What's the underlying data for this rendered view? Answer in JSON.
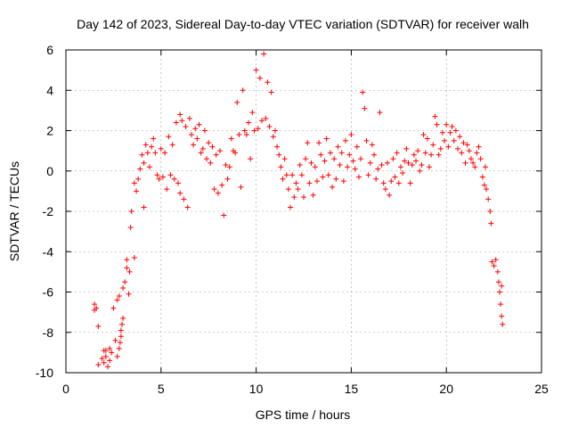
{
  "chart_data": {
    "type": "scatter",
    "title": "Day 142 of 2023, Sidereal Day-to-day VTEC variation (SDTVAR) for receiver walh",
    "xlabel": "GPS time / hours",
    "ylabel": "SDTVAR / TECUs",
    "xlim": [
      0,
      25
    ],
    "ylim": [
      -10,
      6
    ],
    "xticks": [
      0,
      5,
      10,
      15,
      20,
      25
    ],
    "yticks": [
      -10,
      -8,
      -6,
      -4,
      -2,
      0,
      2,
      4,
      6
    ],
    "xtick_labels": [
      "0",
      "5",
      "10",
      "15",
      "20",
      "25"
    ],
    "ytick_labels": [
      "-10",
      "-8",
      "-6",
      "-4",
      "-2",
      "0",
      "2",
      "4",
      "6"
    ],
    "grid": true,
    "marker": "+",
    "series": [
      {
        "name": "SDTVAR",
        "color": "#ff0000",
        "points": [
          [
            1.5,
            -6.6
          ],
          [
            1.5,
            -6.9
          ],
          [
            1.6,
            -6.8
          ],
          [
            1.7,
            -7.7
          ],
          [
            1.7,
            -9.6
          ],
          [
            1.9,
            -9.3
          ],
          [
            2.0,
            -8.9
          ],
          [
            2.0,
            -9.5
          ],
          [
            2.1,
            -8.9
          ],
          [
            2.1,
            -9.2
          ],
          [
            2.2,
            -9.7
          ],
          [
            2.3,
            -9.4
          ],
          [
            2.3,
            -8.8
          ],
          [
            2.4,
            -9.0
          ],
          [
            2.5,
            -6.8
          ],
          [
            2.6,
            -8.4
          ],
          [
            2.7,
            -9.2
          ],
          [
            2.7,
            -6.4
          ],
          [
            2.8,
            -8.8
          ],
          [
            2.8,
            -6.2
          ],
          [
            2.85,
            -8.5
          ],
          [
            2.9,
            -8.2
          ],
          [
            2.9,
            -7.9
          ],
          [
            2.95,
            -7.6
          ],
          [
            3.0,
            -7.3
          ],
          [
            3.0,
            -5.8
          ],
          [
            3.1,
            -5.5
          ],
          [
            3.2,
            -4.8
          ],
          [
            3.2,
            -4.4
          ],
          [
            3.3,
            -6.1
          ],
          [
            3.35,
            -5.0
          ],
          [
            3.4,
            -2.8
          ],
          [
            3.45,
            -2.0
          ],
          [
            3.6,
            -4.3
          ],
          [
            3.6,
            -0.6
          ],
          [
            3.7,
            -1.0
          ],
          [
            3.8,
            -0.4
          ],
          [
            3.9,
            0.1
          ],
          [
            4.0,
            0.8
          ],
          [
            4.1,
            -1.8
          ],
          [
            4.1,
            0.4
          ],
          [
            4.2,
            1.3
          ],
          [
            4.3,
            0.9
          ],
          [
            4.4,
            0.2
          ],
          [
            4.5,
            1.2
          ],
          [
            4.6,
            1.6
          ],
          [
            4.7,
            0.9
          ],
          [
            4.8,
            -0.2
          ],
          [
            4.9,
            -0.4
          ],
          [
            5.0,
            1.1
          ],
          [
            5.1,
            -0.3
          ],
          [
            5.2,
            0.9
          ],
          [
            5.3,
            -0.9
          ],
          [
            5.4,
            1.7
          ],
          [
            5.5,
            -0.2
          ],
          [
            5.6,
            1.3
          ],
          [
            5.7,
            -0.4
          ],
          [
            5.8,
            2.4
          ],
          [
            5.9,
            -0.6
          ],
          [
            6.0,
            2.8
          ],
          [
            6.0,
            -1.1
          ],
          [
            6.1,
            2.5
          ],
          [
            6.2,
            -1.4
          ],
          [
            6.3,
            2.2
          ],
          [
            6.4,
            -1.8
          ],
          [
            6.5,
            2.6
          ],
          [
            6.6,
            1.8
          ],
          [
            6.7,
            1.3
          ],
          [
            6.8,
            2.1
          ],
          [
            6.9,
            1.6
          ],
          [
            7.0,
            2.3
          ],
          [
            7.1,
            0.9
          ],
          [
            7.2,
            1.1
          ],
          [
            7.3,
            2.0
          ],
          [
            7.4,
            0.6
          ],
          [
            7.5,
            1.4
          ],
          [
            7.6,
            0.4
          ],
          [
            7.7,
            1.2
          ],
          [
            7.8,
            -0.9
          ],
          [
            7.9,
            0.8
          ],
          [
            8.0,
            -1.1
          ],
          [
            8.1,
            1.0
          ],
          [
            8.2,
            -0.7
          ],
          [
            8.3,
            -2.2
          ],
          [
            8.4,
            0.3
          ],
          [
            8.5,
            -0.4
          ],
          [
            8.6,
            0.2
          ],
          [
            8.7,
            1.6
          ],
          [
            8.8,
            1.0
          ],
          [
            8.9,
            0.9
          ],
          [
            9.0,
            3.4
          ],
          [
            9.1,
            1.8
          ],
          [
            9.2,
            -0.8
          ],
          [
            9.3,
            4.0
          ],
          [
            9.4,
            2.0
          ],
          [
            9.5,
            1.8
          ],
          [
            9.6,
            2.4
          ],
          [
            9.7,
            0.6
          ],
          [
            9.8,
            2.9
          ],
          [
            9.9,
            2.0
          ],
          [
            10.0,
            5.0
          ],
          [
            10.1,
            2.1
          ],
          [
            10.2,
            4.6
          ],
          [
            10.3,
            2.5
          ],
          [
            10.4,
            5.8
          ],
          [
            10.5,
            2.6
          ],
          [
            10.6,
            4.4
          ],
          [
            10.7,
            2.2
          ],
          [
            10.8,
            3.9
          ],
          [
            10.9,
            1.7
          ],
          [
            11.0,
            2.0
          ],
          [
            11.1,
            1.2
          ],
          [
            11.2,
            0.8
          ],
          [
            11.3,
            0.2
          ],
          [
            11.4,
            -0.4
          ],
          [
            11.5,
            0.6
          ],
          [
            11.6,
            -0.2
          ],
          [
            11.7,
            -0.9
          ],
          [
            11.8,
            -1.8
          ],
          [
            11.9,
            -0.2
          ],
          [
            12.0,
            -1.3
          ],
          [
            12.1,
            -0.6
          ],
          [
            12.2,
            -0.9
          ],
          [
            12.3,
            0.3
          ],
          [
            12.4,
            -0.2
          ],
          [
            12.5,
            -1.3
          ],
          [
            12.6,
            0.6
          ],
          [
            12.7,
            1.4
          ],
          [
            12.8,
            -0.6
          ],
          [
            12.9,
            0.4
          ],
          [
            13.0,
            -1.2
          ],
          [
            13.1,
            0.2
          ],
          [
            13.2,
            -0.5
          ],
          [
            13.3,
            1.4
          ],
          [
            13.4,
            0.8
          ],
          [
            13.5,
            -0.3
          ],
          [
            13.6,
            0.5
          ],
          [
            13.7,
            1.6
          ],
          [
            13.8,
            -0.2
          ],
          [
            13.9,
            0.9
          ],
          [
            14.0,
            -0.8
          ],
          [
            14.1,
            0.6
          ],
          [
            14.2,
            -0.4
          ],
          [
            14.3,
            1.2
          ],
          [
            14.4,
            0.3
          ],
          [
            14.5,
            0.9
          ],
          [
            14.6,
            -0.5
          ],
          [
            14.7,
            1.5
          ],
          [
            14.8,
            0.2
          ],
          [
            14.9,
            0.8
          ],
          [
            15.0,
            1.8
          ],
          [
            15.1,
            0.5
          ],
          [
            15.2,
            0.1
          ],
          [
            15.3,
            1.2
          ],
          [
            15.4,
            -0.3
          ],
          [
            15.5,
            0.6
          ],
          [
            15.6,
            3.9
          ],
          [
            15.7,
            3.1
          ],
          [
            15.8,
            1.5
          ],
          [
            15.9,
            -0.2
          ],
          [
            16.0,
            0.4
          ],
          [
            16.1,
            1.3
          ],
          [
            16.2,
            0.8
          ],
          [
            16.3,
            -0.4
          ],
          [
            16.4,
            0.1
          ],
          [
            16.5,
            2.9
          ],
          [
            16.6,
            0.3
          ],
          [
            16.7,
            -0.6
          ],
          [
            16.8,
            -0.9
          ],
          [
            16.9,
            0.4
          ],
          [
            17.0,
            -1.2
          ],
          [
            17.1,
            -0.5
          ],
          [
            17.2,
            0.6
          ],
          [
            17.3,
            -0.3
          ],
          [
            17.4,
            0.9
          ],
          [
            17.5,
            -0.6
          ],
          [
            17.6,
            0.2
          ],
          [
            17.7,
            -0.1
          ],
          [
            17.8,
            0.5
          ],
          [
            17.9,
            1.1
          ],
          [
            18.0,
            0.4
          ],
          [
            18.1,
            -0.6
          ],
          [
            18.2,
            0.3
          ],
          [
            18.3,
            0.8
          ],
          [
            18.4,
            0.5
          ],
          [
            18.5,
            1.0
          ],
          [
            18.6,
            0.0
          ],
          [
            18.7,
            0.3
          ],
          [
            18.8,
            1.8
          ],
          [
            18.9,
            0.9
          ],
          [
            19.0,
            1.6
          ],
          [
            19.1,
            0.2
          ],
          [
            19.2,
            0.8
          ],
          [
            19.3,
            1.3
          ],
          [
            19.4,
            2.7
          ],
          [
            19.5,
            2.3
          ],
          [
            19.6,
            0.8
          ],
          [
            19.7,
            1.1
          ],
          [
            19.8,
            1.9
          ],
          [
            19.9,
            1.5
          ],
          [
            20.0,
            2.3
          ],
          [
            20.1,
            1.2
          ],
          [
            20.2,
            1.9
          ],
          [
            20.3,
            2.2
          ],
          [
            20.4,
            1.5
          ],
          [
            20.5,
            2.0
          ],
          [
            20.6,
            1.1
          ],
          [
            20.7,
            1.7
          ],
          [
            20.8,
            0.9
          ],
          [
            20.9,
            1.4
          ],
          [
            21.0,
            0.4
          ],
          [
            21.1,
            1.3
          ],
          [
            21.2,
            1.0
          ],
          [
            21.3,
            0.6
          ],
          [
            21.4,
            0.4
          ],
          [
            21.5,
            0.2
          ],
          [
            21.6,
            0.9
          ],
          [
            21.7,
            1.2
          ],
          [
            21.8,
            0.6
          ],
          [
            21.9,
            -0.3
          ],
          [
            22.0,
            -0.7
          ],
          [
            22.05,
            0.2
          ],
          [
            22.1,
            -0.9
          ],
          [
            22.2,
            -1.4
          ],
          [
            22.3,
            -2.0
          ],
          [
            22.35,
            -2.6
          ],
          [
            22.4,
            -4.5
          ],
          [
            22.5,
            -4.7
          ],
          [
            22.6,
            -4.4
          ],
          [
            22.7,
            -5.0
          ],
          [
            22.75,
            -5.5
          ],
          [
            22.8,
            -6.0
          ],
          [
            22.85,
            -6.6
          ],
          [
            22.9,
            -7.2
          ],
          [
            22.95,
            -7.6
          ],
          [
            22.9,
            -5.7
          ]
        ]
      }
    ]
  }
}
